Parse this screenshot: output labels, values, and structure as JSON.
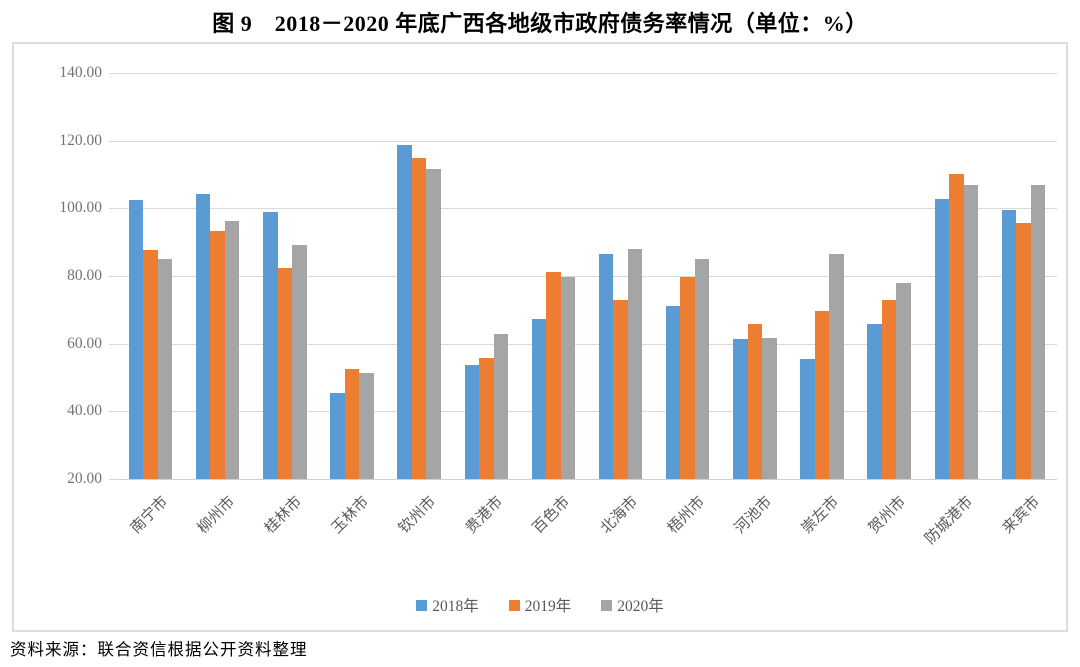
{
  "title": "图 9　2018－2020 年底广西各地级市政府债务率情况（单位：%）",
  "source": "资料来源：联合资信根据公开资料整理",
  "colors": {
    "series_2018": "#5B9BD5",
    "series_2019": "#ED7D31",
    "series_2020": "#A5A5A5",
    "gridline": "#d9d9d9",
    "axis_text": "#737373",
    "category_text": "#595959"
  },
  "chart_data": {
    "type": "bar",
    "title": "图 9　2018－2020 年底广西各地级市政府债务率情况（单位：%）",
    "xlabel": "",
    "ylabel": "",
    "ylim": [
      20,
      140
    ],
    "ytick_step": 20,
    "ytick_labels": [
      "140.00",
      "120.00",
      "100.00",
      "80.00",
      "60.00",
      "40.00",
      "20.00"
    ],
    "grid": true,
    "legend_position": "bottom",
    "categories": [
      "南宁市",
      "柳州市",
      "桂林市",
      "玉林市",
      "钦州市",
      "贵港市",
      "百色市",
      "北海市",
      "梧州市",
      "河池市",
      "崇左市",
      "贺州市",
      "防城港市",
      "来宾市"
    ],
    "series": [
      {
        "name": "2018年",
        "color": "#5B9BD5",
        "values": [
          102.4,
          104.2,
          98.8,
          45.3,
          118.6,
          53.7,
          67.4,
          86.6,
          71.1,
          61.3,
          55.4,
          65.7,
          102.9,
          99.5
        ]
      },
      {
        "name": "2019年",
        "color": "#ED7D31",
        "values": [
          87.7,
          93.4,
          82.4,
          52.4,
          114.8,
          55.9,
          81.1,
          72.9,
          79.8,
          65.7,
          69.6,
          72.8,
          110.3,
          95.8
        ]
      },
      {
        "name": "2020年",
        "color": "#A5A5A5",
        "values": [
          85.0,
          96.3,
          89.3,
          51.2,
          111.5,
          62.8,
          79.8,
          87.9,
          85.0,
          61.6,
          86.6,
          77.9,
          106.9,
          106.9
        ]
      }
    ]
  }
}
